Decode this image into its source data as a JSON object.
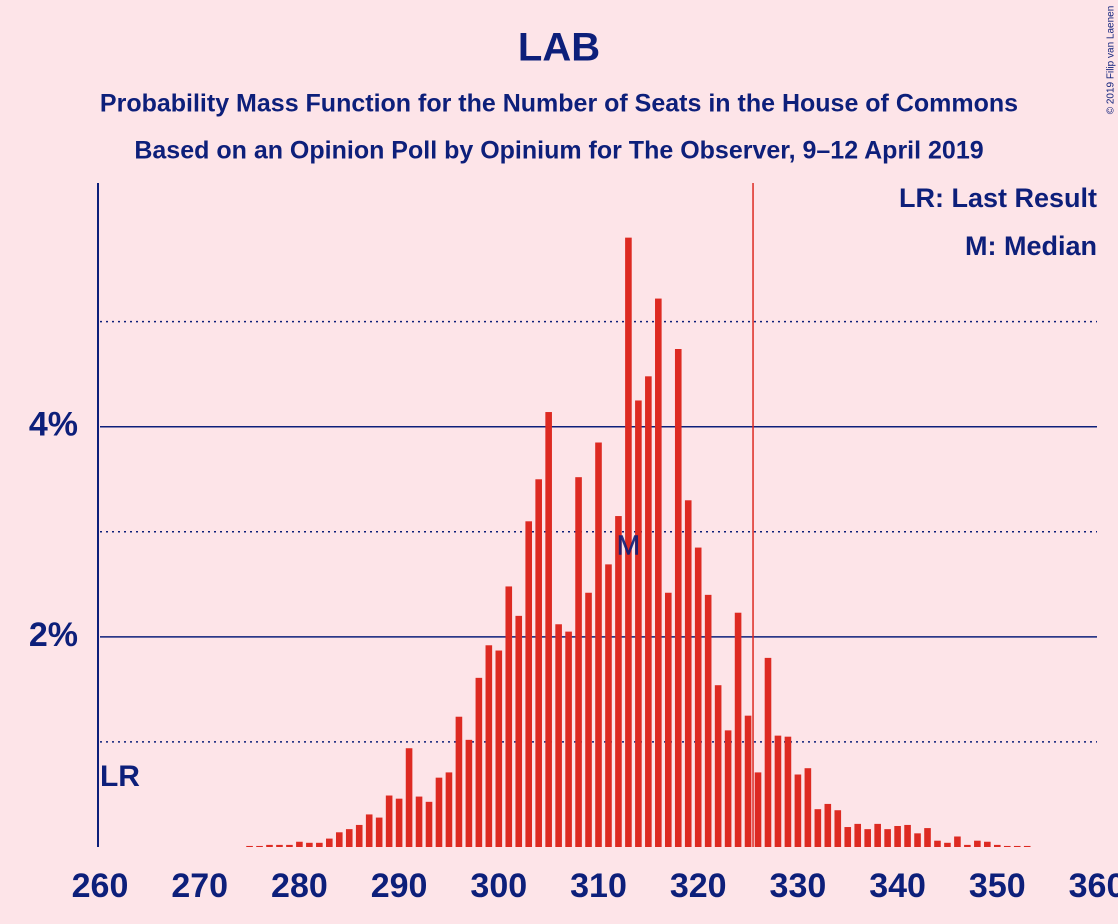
{
  "chart_data": {
    "type": "bar",
    "title": "LAB",
    "subtitle": "Probability Mass Function for the Number of Seats in the House of Commons",
    "subtitle2": "Based on an Opinion Poll by Opinium for The Observer, 9–12 April 2019",
    "copyright": "© 2019 Filip van Laenen",
    "legend": [
      "LR: Last Result",
      "M: Median"
    ],
    "legend_position": "upper right",
    "color": "#dd2a22",
    "x": [
      260,
      261,
      262,
      263,
      264,
      265,
      266,
      267,
      268,
      269,
      270,
      271,
      272,
      273,
      274,
      275,
      276,
      277,
      278,
      279,
      280,
      281,
      282,
      283,
      284,
      285,
      286,
      287,
      288,
      289,
      290,
      291,
      292,
      293,
      294,
      295,
      296,
      297,
      298,
      299,
      300,
      301,
      302,
      303,
      304,
      305,
      306,
      307,
      308,
      309,
      310,
      311,
      312,
      313,
      314,
      315,
      316,
      317,
      318,
      319,
      320,
      321,
      322,
      323,
      324,
      325,
      326,
      327,
      328,
      329,
      330,
      331,
      332,
      333,
      334,
      335,
      336,
      337,
      338,
      339,
      340,
      341,
      342,
      343,
      344,
      345,
      346,
      347,
      348,
      349,
      350,
      351,
      352,
      353,
      354,
      355,
      356,
      357,
      358,
      359,
      360
    ],
    "values": [
      0,
      0,
      0,
      0,
      0,
      0,
      0,
      0,
      0,
      0,
      0,
      0,
      0,
      0,
      0,
      0.01,
      0.01,
      0.02,
      0.02,
      0.02,
      0.05,
      0.04,
      0.04,
      0.08,
      0.14,
      0.17,
      0.21,
      0.31,
      0.28,
      0.49,
      0.46,
      0.94,
      0.48,
      0.43,
      0.66,
      0.71,
      1.24,
      1.02,
      1.61,
      1.92,
      1.87,
      2.48,
      2.2,
      3.1,
      3.5,
      4.14,
      2.12,
      2.05,
      3.52,
      2.42,
      3.85,
      2.69,
      3.15,
      5.8,
      4.25,
      4.48,
      5.22,
      2.42,
      4.74,
      3.3,
      2.85,
      2.4,
      1.54,
      1.11,
      2.23,
      1.25,
      0.71,
      1.8,
      1.06,
      1.05,
      0.69,
      0.75,
      0.36,
      0.41,
      0.35,
      0.19,
      0.22,
      0.17,
      0.22,
      0.17,
      0.2,
      0.21,
      0.13,
      0.18,
      0.06,
      0.04,
      0.1,
      0.02,
      0.06,
      0.05,
      0.02,
      0.01,
      0.01,
      0.01,
      0,
      0,
      0,
      0,
      0,
      0,
      0
    ],
    "xlim": [
      260,
      360
    ],
    "xticks": [
      260,
      270,
      280,
      290,
      300,
      310,
      320,
      330,
      340,
      350,
      360
    ],
    "ylim": [
      0,
      6.32
    ],
    "yticks": [
      {
        "value": 2,
        "label": "2%"
      },
      {
        "value": 4,
        "label": "4%"
      }
    ],
    "minor_yticks": [
      1,
      3,
      5
    ],
    "majority_line": 325.5,
    "median": {
      "x": 313,
      "label": "M"
    },
    "last_result": {
      "x": 262,
      "label": "LR"
    }
  }
}
